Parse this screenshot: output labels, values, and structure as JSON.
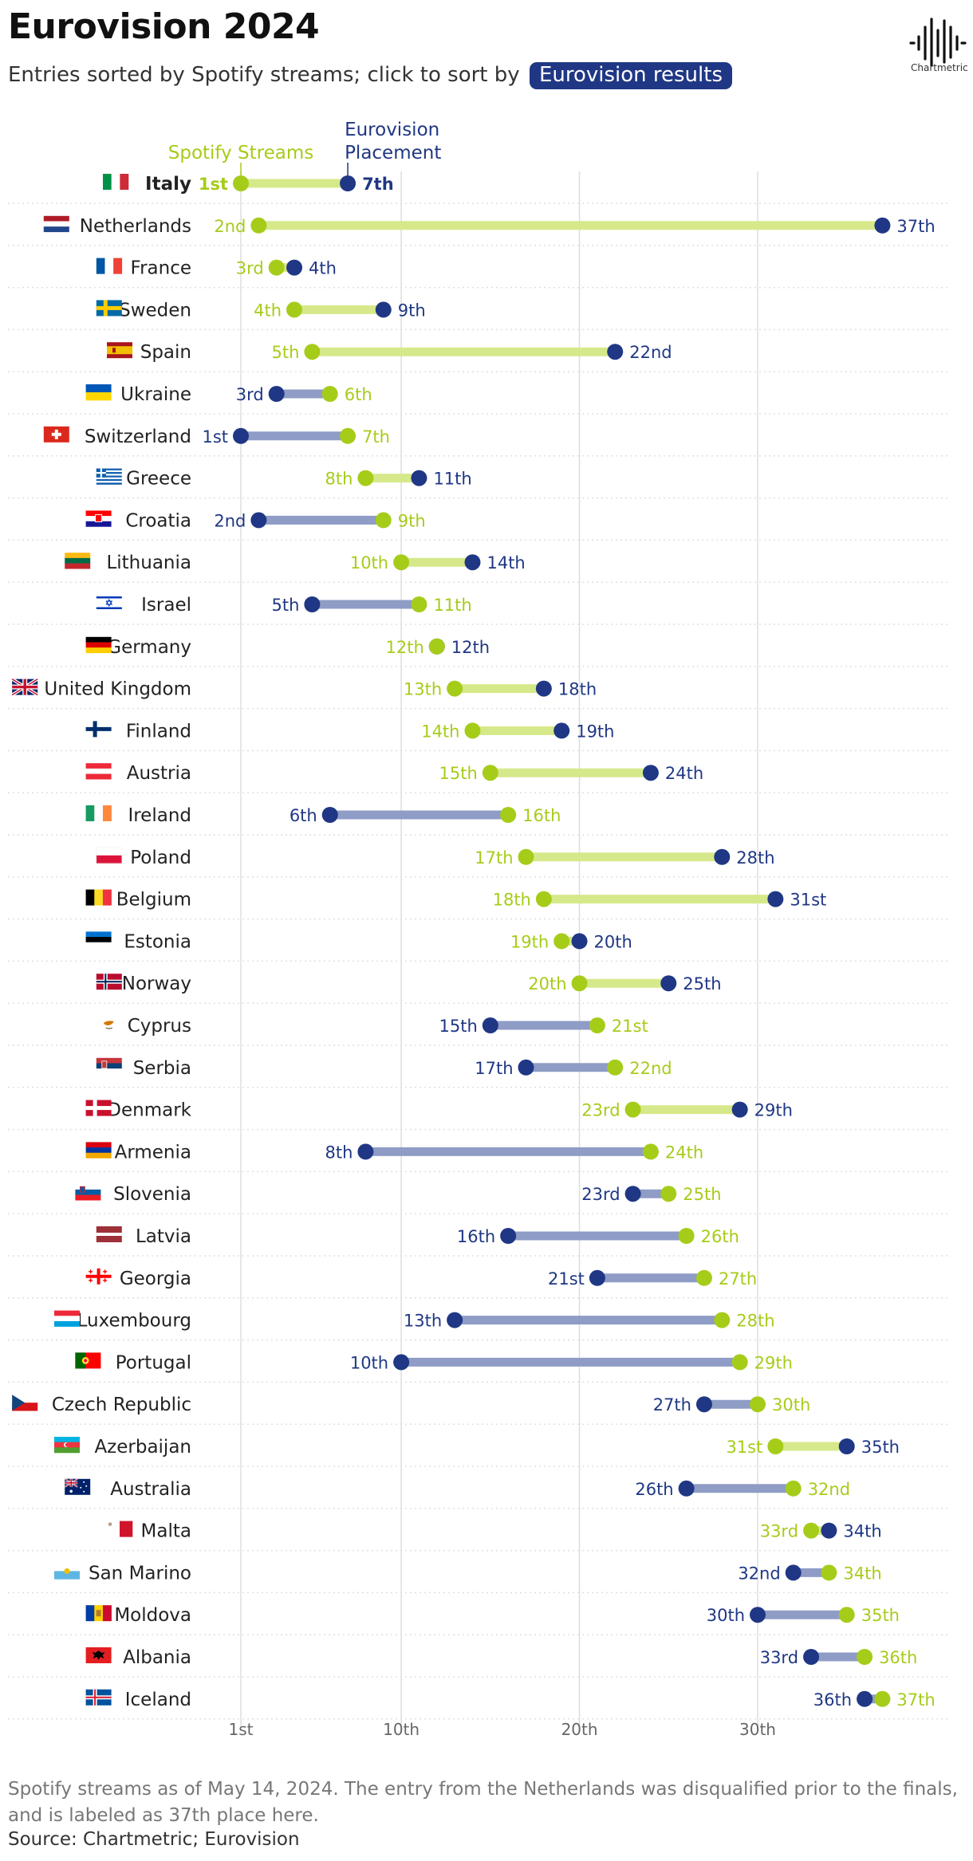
{
  "header": {
    "title": "Eurovision 2024",
    "subtitle_prefix": "Entries sorted by Spotify streams; click to sort by",
    "sort_button_label": "Eurovision results",
    "logo_text": "Chartmetric"
  },
  "colors": {
    "spotify": "#a6cc1a",
    "spotify_bar": "#d6e98a",
    "eurovision": "#1f3784",
    "eurovision_bar": "#8e9cc6",
    "grid": "#dddddd"
  },
  "chart_data": {
    "type": "dumbbell",
    "legend": {
      "spotify": "Spotify Streams",
      "eurovision_line1": "Eurovision",
      "eurovision_line2": "Placement"
    },
    "x_ticks": [
      {
        "value": 1,
        "label": "1st"
      },
      {
        "value": 10,
        "label": "10th"
      },
      {
        "value": 20,
        "label": "20th"
      },
      {
        "value": 30,
        "label": "30th"
      }
    ],
    "xlim": [
      1,
      37
    ],
    "rows": [
      {
        "country": "Italy",
        "flag": "IT",
        "spotify": 1,
        "euro": 7,
        "spotify_label": "1st",
        "euro_label": "7th"
      },
      {
        "country": "Netherlands",
        "flag": "NL",
        "spotify": 2,
        "euro": 37,
        "spotify_label": "2nd",
        "euro_label": "37th"
      },
      {
        "country": "France",
        "flag": "FR",
        "spotify": 3,
        "euro": 4,
        "spotify_label": "3rd",
        "euro_label": "4th"
      },
      {
        "country": "Sweden",
        "flag": "SE",
        "spotify": 4,
        "euro": 9,
        "spotify_label": "4th",
        "euro_label": "9th"
      },
      {
        "country": "Spain",
        "flag": "ES",
        "spotify": 5,
        "euro": 22,
        "spotify_label": "5th",
        "euro_label": "22nd"
      },
      {
        "country": "Ukraine",
        "flag": "UA",
        "spotify": 6,
        "euro": 3,
        "spotify_label": "6th",
        "euro_label": "3rd"
      },
      {
        "country": "Switzerland",
        "flag": "CH",
        "spotify": 7,
        "euro": 1,
        "spotify_label": "7th",
        "euro_label": "1st"
      },
      {
        "country": "Greece",
        "flag": "GR",
        "spotify": 8,
        "euro": 11,
        "spotify_label": "8th",
        "euro_label": "11th"
      },
      {
        "country": "Croatia",
        "flag": "HR",
        "spotify": 9,
        "euro": 2,
        "spotify_label": "9th",
        "euro_label": "2nd"
      },
      {
        "country": "Lithuania",
        "flag": "LT",
        "spotify": 10,
        "euro": 14,
        "spotify_label": "10th",
        "euro_label": "14th"
      },
      {
        "country": "Israel",
        "flag": "IL",
        "spotify": 11,
        "euro": 5,
        "spotify_label": "11th",
        "euro_label": "5th"
      },
      {
        "country": "Germany",
        "flag": "DE",
        "spotify": 12,
        "euro": 12,
        "spotify_label": "12th",
        "euro_label": "12th"
      },
      {
        "country": "United Kingdom",
        "flag": "GB",
        "spotify": 13,
        "euro": 18,
        "spotify_label": "13th",
        "euro_label": "18th"
      },
      {
        "country": "Finland",
        "flag": "FI",
        "spotify": 14,
        "euro": 19,
        "spotify_label": "14th",
        "euro_label": "19th"
      },
      {
        "country": "Austria",
        "flag": "AT",
        "spotify": 15,
        "euro": 24,
        "spotify_label": "15th",
        "euro_label": "24th"
      },
      {
        "country": "Ireland",
        "flag": "IE",
        "spotify": 16,
        "euro": 6,
        "spotify_label": "16th",
        "euro_label": "6th"
      },
      {
        "country": "Poland",
        "flag": "PL",
        "spotify": 17,
        "euro": 28,
        "spotify_label": "17th",
        "euro_label": "28th"
      },
      {
        "country": "Belgium",
        "flag": "BE",
        "spotify": 18,
        "euro": 31,
        "spotify_label": "18th",
        "euro_label": "31st"
      },
      {
        "country": "Estonia",
        "flag": "EE",
        "spotify": 19,
        "euro": 20,
        "spotify_label": "19th",
        "euro_label": "20th"
      },
      {
        "country": "Norway",
        "flag": "NO",
        "spotify": 20,
        "euro": 25,
        "spotify_label": "20th",
        "euro_label": "25th"
      },
      {
        "country": "Cyprus",
        "flag": "CY",
        "spotify": 21,
        "euro": 15,
        "spotify_label": "21st",
        "euro_label": "15th"
      },
      {
        "country": "Serbia",
        "flag": "RS",
        "spotify": 22,
        "euro": 17,
        "spotify_label": "22nd",
        "euro_label": "17th"
      },
      {
        "country": "Denmark",
        "flag": "DK",
        "spotify": 23,
        "euro": 29,
        "spotify_label": "23rd",
        "euro_label": "29th"
      },
      {
        "country": "Armenia",
        "flag": "AM",
        "spotify": 24,
        "euro": 8,
        "spotify_label": "24th",
        "euro_label": "8th"
      },
      {
        "country": "Slovenia",
        "flag": "SI",
        "spotify": 25,
        "euro": 23,
        "spotify_label": "25th",
        "euro_label": "23rd"
      },
      {
        "country": "Latvia",
        "flag": "LV",
        "spotify": 26,
        "euro": 16,
        "spotify_label": "26th",
        "euro_label": "16th"
      },
      {
        "country": "Georgia",
        "flag": "GE",
        "spotify": 27,
        "euro": 21,
        "spotify_label": "27th",
        "euro_label": "21st"
      },
      {
        "country": "Luxembourg",
        "flag": "LU",
        "spotify": 28,
        "euro": 13,
        "spotify_label": "28th",
        "euro_label": "13th"
      },
      {
        "country": "Portugal",
        "flag": "PT",
        "spotify": 29,
        "euro": 10,
        "spotify_label": "29th",
        "euro_label": "10th"
      },
      {
        "country": "Czech Republic",
        "flag": "CZ",
        "spotify": 30,
        "euro": 27,
        "spotify_label": "30th",
        "euro_label": "27th"
      },
      {
        "country": "Azerbaijan",
        "flag": "AZ",
        "spotify": 31,
        "euro": 35,
        "spotify_label": "31st",
        "euro_label": "35th"
      },
      {
        "country": "Australia",
        "flag": "AU",
        "spotify": 32,
        "euro": 26,
        "spotify_label": "32nd",
        "euro_label": "26th"
      },
      {
        "country": "Malta",
        "flag": "MT",
        "spotify": 33,
        "euro": 34,
        "spotify_label": "33rd",
        "euro_label": "34th"
      },
      {
        "country": "San Marino",
        "flag": "SM",
        "spotify": 34,
        "euro": 32,
        "spotify_label": "34th",
        "euro_label": "32nd"
      },
      {
        "country": "Moldova",
        "flag": "MD",
        "spotify": 35,
        "euro": 30,
        "spotify_label": "35th",
        "euro_label": "30th"
      },
      {
        "country": "Albania",
        "flag": "AL",
        "spotify": 36,
        "euro": 33,
        "spotify_label": "36th",
        "euro_label": "33rd"
      },
      {
        "country": "Iceland",
        "flag": "IS",
        "spotify": 37,
        "euro": 36,
        "spotify_label": "37th",
        "euro_label": "36th"
      }
    ]
  },
  "footer": {
    "note": "Spotify streams as of May 14, 2024. The entry from the Netherlands was disqualified prior to the finals, and is labeled as 37th place here.",
    "source": "Source: Chartmetric; Eurovision"
  }
}
